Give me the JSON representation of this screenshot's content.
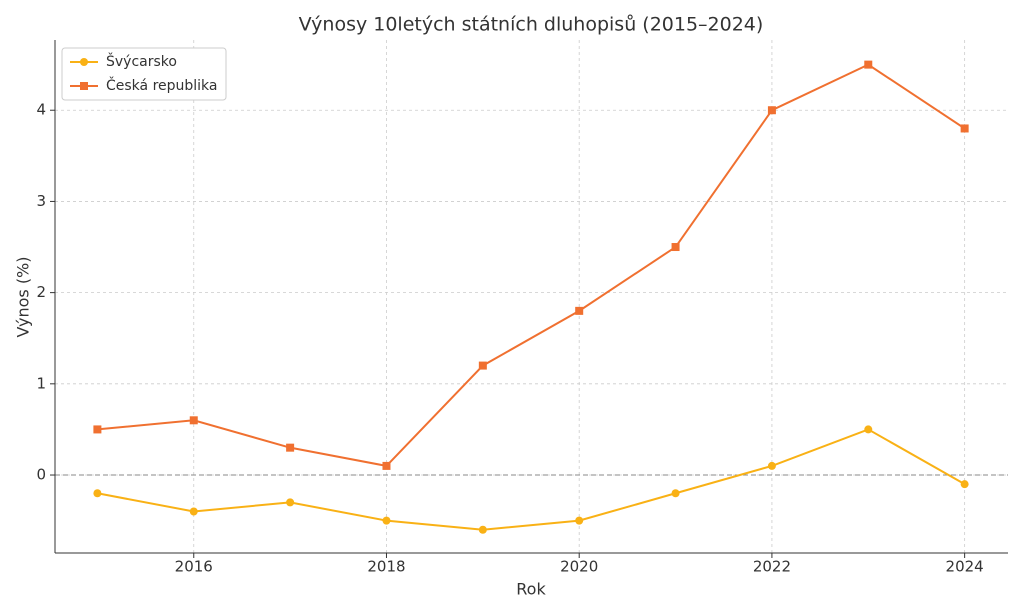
{
  "chart_data": {
    "type": "line",
    "title": "Výnosy 10letých státních dluhopisů (2015–2024)",
    "x_label": "Rok",
    "y_label": "Výnos (%)",
    "x": [
      2015,
      2016,
      2017,
      2018,
      2019,
      2020,
      2021,
      2022,
      2023,
      2024
    ],
    "series": [
      {
        "name": "Švýcarsko",
        "color": "#f9b115",
        "marker": "circle",
        "values": [
          -0.2,
          -0.4,
          -0.3,
          -0.5,
          -0.6,
          -0.5,
          -0.2,
          0.1,
          0.5,
          -0.1
        ]
      },
      {
        "name": "Česká republika",
        "color": "#f07030",
        "marker": "square",
        "values": [
          0.5,
          0.6,
          0.3,
          0.1,
          1.2,
          1.8,
          2.5,
          4.0,
          4.5,
          3.8
        ]
      }
    ],
    "xlim": [
      2014.56,
      2024.45
    ],
    "xticks": [
      2016,
      2018,
      2020,
      2022,
      2024
    ],
    "ylim": [
      -0.855,
      4.77
    ],
    "yticks": [
      0,
      1,
      2,
      3,
      4
    ],
    "grid": true,
    "hline": 0,
    "legend": "upper-left"
  }
}
